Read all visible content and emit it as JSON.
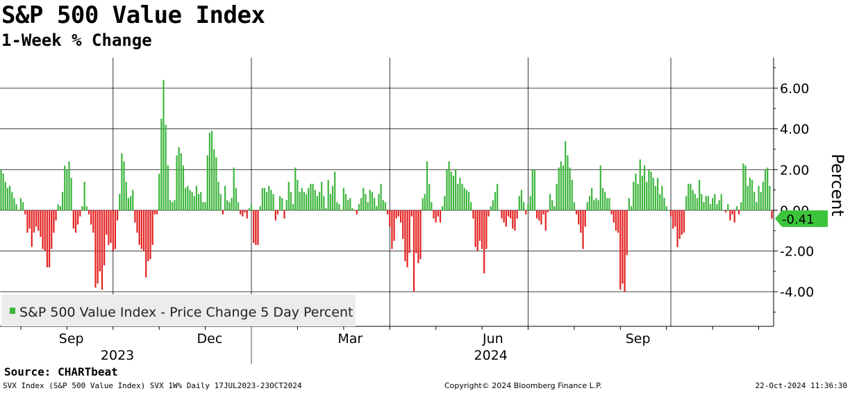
{
  "header": {
    "title": "S&P 500 Value Index",
    "subtitle": "1-Week % Change"
  },
  "footer": {
    "source": "Source:  CHARTbeat",
    "left": "SVX Index (S&P 500 Value Index) SVX 1W%  Daily 17JUL2023-23OCT2024",
    "mid": "Copyright© 2024 Bloomberg Finance L.P.",
    "right": "22-Oct-2024 11:36:30"
  },
  "colors": {
    "positive": "#3db53d",
    "negative": "#e32020",
    "last_badge": "#3cc43c"
  },
  "chart_data": {
    "type": "bar",
    "title": "S&P 500 Value Index",
    "subtitle": "1-Week % Change",
    "ylabel": "Percent",
    "ylim": [
      -5.7,
      7.5
    ],
    "yticks": [
      6.0,
      4.0,
      2.0,
      0.0,
      -2.0,
      -4.0
    ],
    "ytick_labels": [
      "6.00",
      "4.00",
      "2.00",
      "0.00",
      "-2.00",
      "-4.00"
    ],
    "grid": true,
    "legend": {
      "position": "bottom-left",
      "entries": [
        "S&P 500 Value Index - Price Change 5 Day Percent"
      ]
    },
    "last_value": -0.41,
    "last_value_label": "-0.41",
    "x_month_labels": [
      {
        "label": "Sep",
        "index": 32
      },
      {
        "label": "Dec",
        "index": 95
      },
      {
        "label": "Mar",
        "index": 159
      },
      {
        "label": "Jun",
        "index": 224
      },
      {
        "label": "Sep",
        "index": 290
      }
    ],
    "x_year_labels": [
      {
        "label": "2023",
        "index": 53
      },
      {
        "label": "2024",
        "index": 223
      }
    ],
    "x_year_divider_index": 114,
    "vertical_grid_indices": [
      51,
      114,
      177,
      240,
      305
    ],
    "values": [
      2.0,
      1.8,
      1.4,
      1.1,
      1.2,
      0.9,
      0.6,
      0.3,
      0.0,
      0.6,
      0.4,
      -0.2,
      -1.1,
      -0.9,
      -1.8,
      -1.1,
      -0.8,
      -1.0,
      -1.3,
      -1.9,
      -2.0,
      -2.8,
      -2.8,
      -1.9,
      -1.1,
      -0.5,
      0.3,
      0.2,
      0.9,
      2.2,
      2.0,
      2.4,
      1.6,
      -0.9,
      -1.1,
      -0.7,
      -0.3,
      0.2,
      1.4,
      0.2,
      -0.2,
      -0.7,
      -1.1,
      -3.8,
      -3.6,
      -3.0,
      -3.9,
      -2.7,
      -1.2,
      -1.7,
      -1.6,
      -2.0,
      -1.9,
      -0.5,
      0.8,
      2.8,
      2.4,
      1.4,
      0.6,
      0.7,
      1.0,
      -0.6,
      -1.1,
      -1.7,
      -1.9,
      -2.0,
      -3.3,
      -2.5,
      -2.4,
      -1.7,
      -0.2,
      -0.2,
      1.8,
      4.5,
      6.4,
      4.2,
      2.2,
      0.5,
      0.4,
      0.5,
      2.7,
      3.1,
      2.8,
      2.2,
      1.1,
      1.2,
      1.0,
      0.9,
      0.7,
      1.2,
      0.8,
      0.9,
      0.4,
      0.4,
      2.7,
      3.8,
      3.9,
      3.0,
      2.6,
      1.4,
      0.8,
      -0.2,
      1.2,
      0.5,
      0.4,
      0.6,
      2.1,
      1.1,
      0.4,
      -0.2,
      -0.3,
      -0.1,
      -0.4,
      0.1,
      0.3,
      -1.6,
      -1.7,
      -1.7,
      0.2,
      1.1,
      1.1,
      0.9,
      1.2,
      1.0,
      0.8,
      -0.5,
      -0.2,
      0.7,
      0.6,
      -0.4,
      0.5,
      1.4,
      0.9,
      0.3,
      2.1,
      1.5,
      0.9,
      1.1,
      0.9,
      0.8,
      1.1,
      1.3,
      1.3,
      1.0,
      0.7,
      0.9,
      1.4,
      0.7,
      0.1,
      1.5,
      0.8,
      1.2,
      1.9,
      0.4,
      0.3,
      0.0,
      1.1,
      0.8,
      0.5,
      0.6,
      0.1,
      0.0,
      -0.2,
      0.3,
      0.6,
      1.1,
      0.8,
      0.4,
      1.0,
      0.9,
      0.6,
      0.2,
      0.8,
      1.3,
      0.5,
      0.4,
      -0.2,
      -0.8,
      -1.9,
      -1.5,
      -0.4,
      -0.3,
      -0.6,
      -1.4,
      -2.5,
      -2.8,
      -2.1,
      -0.3,
      -4.0,
      -2.1,
      -2.6,
      -2.4,
      0.6,
      0.8,
      2.4,
      1.3,
      0.4,
      -0.4,
      -0.6,
      -0.3,
      -0.6,
      0.2,
      0.7,
      2.0,
      2.4,
      1.9,
      1.7,
      2.0,
      1.3,
      1.6,
      1.3,
      1.1,
      1.0,
      0.9,
      0.4,
      -0.4,
      -1.8,
      -2.0,
      -1.5,
      -1.9,
      -3.1,
      -1.9,
      -0.3,
      0.2,
      0.5,
      0.9,
      1.3,
      0.0,
      -0.4,
      -0.6,
      -0.8,
      -0.3,
      -0.4,
      -0.9,
      -1.0,
      -0.4,
      0.7,
      1.0,
      0.4,
      -0.2,
      0.3,
      0.7,
      2.0,
      2.0,
      -0.4,
      -0.5,
      -0.7,
      -0.2,
      -1.0,
      -0.1,
      0.8,
      0.5,
      0.2,
      1.3,
      2.1,
      2.4,
      2.2,
      3.4,
      2.7,
      2.1,
      1.5,
      0.4,
      -0.2,
      -0.7,
      -1.1,
      -1.9,
      -0.8,
      0.4,
      0.7,
      1.1,
      0.5,
      0.6,
      0.5,
      2.2,
      1.1,
      0.9,
      0.6,
      0.6,
      -0.2,
      -0.6,
      -1.0,
      -1.1,
      -3.9,
      -3.6,
      -4.0,
      -2.2,
      0.6,
      0.2,
      1.4,
      1.8,
      1.3,
      2.5,
      1.7,
      2.2,
      1.4,
      2.0,
      1.9,
      1.6,
      1.2,
      1.6,
      0.8,
      1.2,
      0.6,
      0.2,
      0.0,
      -0.3,
      -0.9,
      -0.8,
      -1.8,
      -1.4,
      -1.2,
      -1.1,
      0.7,
      1.3,
      1.3,
      1.0,
      0.8,
      0.6,
      1.5,
      0.8,
      0.4,
      0.7,
      0.7,
      0.3,
      0.6,
      0.8,
      0.3,
      0.5,
      0.8,
      0.0,
      -0.1,
      0.3,
      -0.5,
      -0.2,
      -0.6,
      0.2,
      -0.2,
      0.4,
      2.3,
      2.2,
      1.2,
      1.6,
      1.5,
      0.9,
      0.4,
      1.2,
      0.9,
      1.4,
      2.0,
      2.1,
      1.2,
      -0.41
    ]
  }
}
